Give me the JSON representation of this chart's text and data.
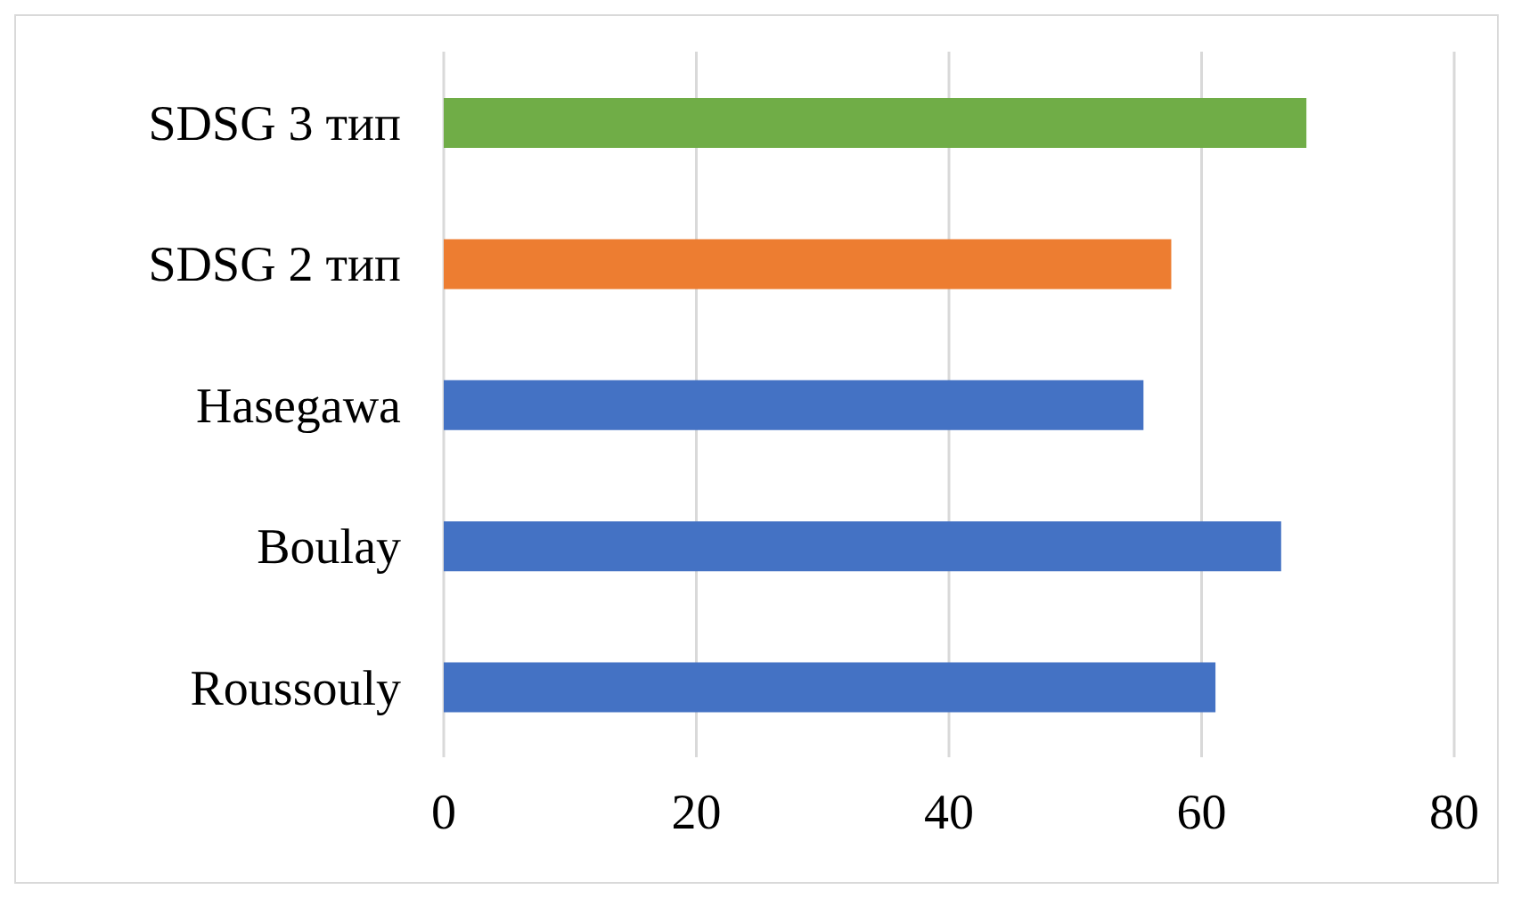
{
  "chart_data": {
    "type": "bar",
    "orientation": "horizontal",
    "categories": [
      "SDSG 3 тип",
      "SDSG 2 тип",
      "Hasegawa",
      "Boulay",
      "Roussouly"
    ],
    "values": [
      68.3,
      57.6,
      55.4,
      66.3,
      61.1
    ],
    "colors": [
      "#70ad47",
      "#ed7d31",
      "#4472c4",
      "#4472c4",
      "#4472c4"
    ],
    "xlim": [
      0,
      80
    ],
    "xticks": [
      0,
      20,
      40,
      60,
      80
    ],
    "grid": "x"
  }
}
